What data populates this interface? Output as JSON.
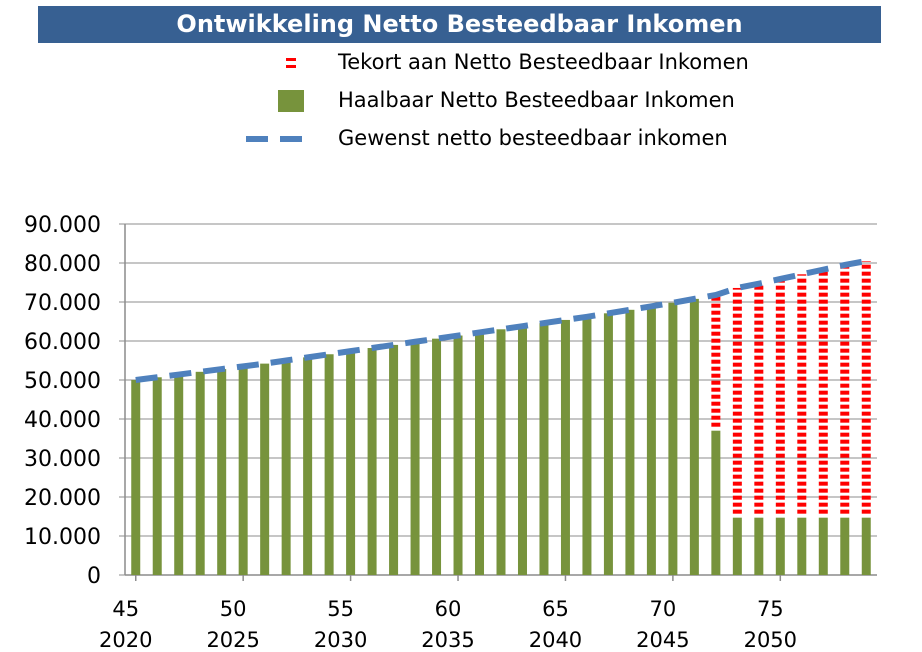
{
  "chart_data": {
    "type": "bar",
    "title": "Ontwikkeling Netto Besteedbaar Inkomen",
    "legend": [
      {
        "key": "tekort",
        "name": "Tekort aan Netto Besteedbaar Inkomen",
        "color": "#ff0000"
      },
      {
        "key": "haalbaar",
        "name": "Haalbaar Netto Besteedbaar Inkomen",
        "color": "#77933c"
      },
      {
        "key": "gewenst",
        "name": "Gewenst netto besteedbaar inkomen",
        "color": "#4f81bd"
      }
    ],
    "legend_position": "top",
    "ylim": [
      0,
      90000
    ],
    "y_ticks": [
      "0",
      "10.000",
      "20.000",
      "30.000",
      "40.000",
      "50.000",
      "60.000",
      "70.000",
      "80.000",
      "90.000"
    ],
    "grid": true,
    "x_age_labels": [
      "45",
      "50",
      "55",
      "60",
      "65",
      "70",
      "75"
    ],
    "x_year_labels": [
      "2020",
      "2025",
      "2030",
      "2035",
      "2040",
      "2045",
      "2050"
    ],
    "ages": [
      45,
      46,
      47,
      48,
      49,
      50,
      51,
      52,
      53,
      54,
      55,
      56,
      57,
      58,
      59,
      60,
      61,
      62,
      63,
      64,
      65,
      66,
      67,
      68,
      69,
      70,
      71,
      72,
      73,
      74,
      75,
      76,
      77,
      78,
      79
    ],
    "series": [
      {
        "name": "Haalbaar Netto Besteedbaar Inkomen",
        "values": [
          50000,
          50700,
          51400,
          52100,
          52800,
          53500,
          54200,
          55000,
          55800,
          56600,
          57400,
          58200,
          59000,
          59800,
          60600,
          61400,
          62200,
          63000,
          63800,
          64600,
          65400,
          66200,
          67100,
          68000,
          68900,
          69800,
          70800,
          37000,
          14700,
          14700,
          14700,
          14700,
          14700,
          14700,
          14700
        ]
      },
      {
        "name": "Tekort aan Netto Besteedbaar Inkomen",
        "values": [
          0,
          0,
          0,
          0,
          0,
          0,
          0,
          0,
          0,
          0,
          0,
          0,
          0,
          0,
          0,
          0,
          0,
          0,
          0,
          0,
          0,
          0,
          0,
          0,
          0,
          0,
          0,
          34800,
          58900,
          60000,
          61200,
          62400,
          63600,
          64800,
          65800
        ]
      },
      {
        "name": "Gewenst netto besteedbaar inkomen",
        "values": [
          50000,
          50700,
          51400,
          52100,
          52800,
          53500,
          54200,
          55000,
          55800,
          56600,
          57400,
          58200,
          59000,
          59800,
          60600,
          61400,
          62200,
          63000,
          63800,
          64600,
          65400,
          66200,
          67100,
          68000,
          68900,
          69800,
          70800,
          71800,
          73600,
          74700,
          75900,
          77100,
          78300,
          79500,
          80500
        ]
      }
    ]
  }
}
